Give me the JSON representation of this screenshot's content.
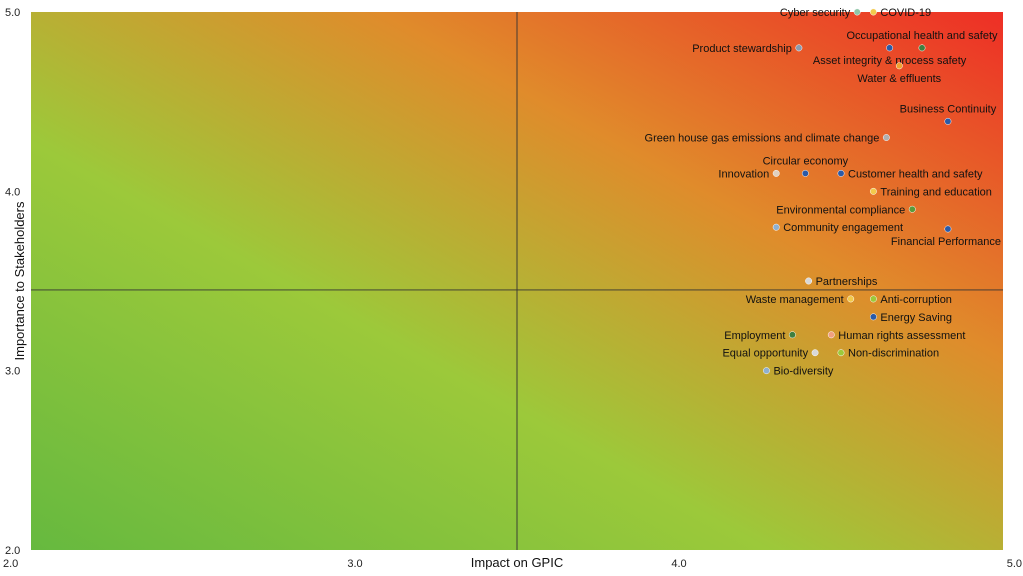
{
  "chart_data": {
    "type": "scatter",
    "title": "",
    "xlabel": "Impact on GPIC",
    "ylabel": "Importance to Stakeholders",
    "xlim": [
      2.0,
      5.0
    ],
    "ylim": [
      2.0,
      5.0
    ],
    "x_ticks": [
      "2.0",
      "3.0",
      "4.0",
      "5.0"
    ],
    "y_ticks": [
      "2.0",
      "3.0",
      "4.0",
      "5.0"
    ],
    "quadrant_lines": {
      "x": 3.5,
      "y": 3.45
    },
    "grid": false,
    "legend": "none",
    "background_gradient": [
      "#66b93f",
      "#9cc93a",
      "#e08b2b",
      "#ee2e26"
    ],
    "points": [
      {
        "label": "Cyber security",
        "x": 4.55,
        "y": 5.0,
        "color": "#8fc6a8",
        "label_side": "left"
      },
      {
        "label": "COVID-19",
        "x": 4.6,
        "y": 5.0,
        "color": "#f2c94c",
        "label_side": "right"
      },
      {
        "label": "Occupational health and safety",
        "x": 4.75,
        "y": 4.8,
        "color": "#3f7f3f",
        "label_side": "above"
      },
      {
        "label": "Product stewardship",
        "x": 4.37,
        "y": 4.8,
        "color": "#8a9bb0",
        "label_side": "left"
      },
      {
        "label": "Asset integrity & process safety",
        "x": 4.65,
        "y": 4.8,
        "color": "#2a5aa8",
        "label_side": "below"
      },
      {
        "label": "Water & effluents",
        "x": 4.68,
        "y": 4.7,
        "color": "#f0a030",
        "label_side": "below"
      },
      {
        "label": "Business Continuity",
        "x": 4.83,
        "y": 4.39,
        "color": "#2a5aa8",
        "label_side": "above"
      },
      {
        "label": "Green house gas emissions and climate change",
        "x": 4.64,
        "y": 4.3,
        "color": "#b0b0b0",
        "label_side": "left"
      },
      {
        "label": "Circular economy",
        "x": 4.39,
        "y": 4.1,
        "color": "#2a5aa8",
        "label_side": "above"
      },
      {
        "label": "Innovation",
        "x": 4.3,
        "y": 4.1,
        "color": "#e0d0c0",
        "label_side": "left"
      },
      {
        "label": "Customer health and safety",
        "x": 4.5,
        "y": 4.1,
        "color": "#2a5aa8",
        "label_side": "right"
      },
      {
        "label": "Training and education",
        "x": 4.6,
        "y": 4.0,
        "color": "#f2c94c",
        "label_side": "right"
      },
      {
        "label": "Environmental compliance",
        "x": 4.72,
        "y": 3.9,
        "color": "#5a9a3a",
        "label_side": "left"
      },
      {
        "label": "Community engagement",
        "x": 4.3,
        "y": 3.8,
        "color": "#8fb0d0",
        "label_side": "right"
      },
      {
        "label": "Financial Performance",
        "x": 4.83,
        "y": 3.79,
        "color": "#2a5aa8",
        "label_side": "below"
      },
      {
        "label": "Partnerships",
        "x": 4.4,
        "y": 3.5,
        "color": "#d8d8d8",
        "label_side": "right"
      },
      {
        "label": "Waste management",
        "x": 4.53,
        "y": 3.4,
        "color": "#f2c94c",
        "label_side": "left"
      },
      {
        "label": "Anti-corruption",
        "x": 4.6,
        "y": 3.4,
        "color": "#9cc93a",
        "label_side": "right"
      },
      {
        "label": "Energy Saving",
        "x": 4.6,
        "y": 3.3,
        "color": "#2a5aa8",
        "label_side": "right"
      },
      {
        "label": "Employment",
        "x": 4.35,
        "y": 3.2,
        "color": "#3f7f3f",
        "label_side": "left"
      },
      {
        "label": "Human rights assessment",
        "x": 4.47,
        "y": 3.2,
        "color": "#f0a080",
        "label_side": "right"
      },
      {
        "label": "Equal opportunity",
        "x": 4.42,
        "y": 3.1,
        "color": "#d8d8d8",
        "label_side": "left"
      },
      {
        "label": "Non-discrimination",
        "x": 4.5,
        "y": 3.1,
        "color": "#9cc93a",
        "label_side": "right"
      },
      {
        "label": "Bio-diversity",
        "x": 4.27,
        "y": 3.0,
        "color": "#8fb0d0",
        "label_side": "right"
      }
    ]
  }
}
